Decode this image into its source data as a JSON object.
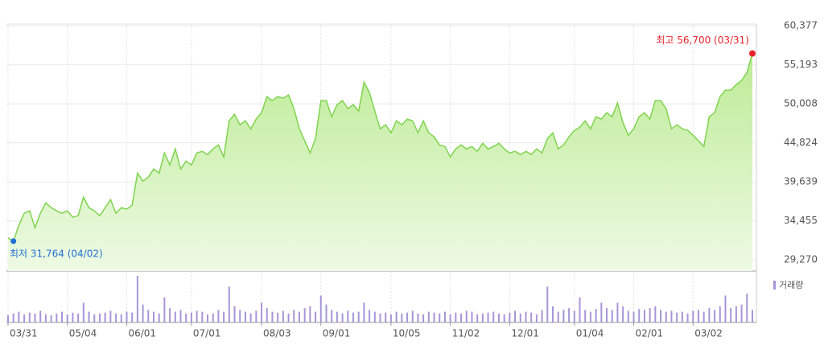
{
  "chart_data": [
    {
      "type": "area",
      "color": "#7fd44f",
      "categories": [
        "03/31",
        null,
        null,
        null,
        null,
        null,
        null,
        null,
        null,
        null,
        null,
        "05/04",
        null,
        null,
        null,
        null,
        null,
        null,
        null,
        null,
        null,
        null,
        "06/01",
        null,
        null,
        null,
        null,
        null,
        null,
        null,
        null,
        null,
        null,
        null,
        "07/01",
        null,
        null,
        null,
        null,
        null,
        null,
        null,
        null,
        null,
        null,
        null,
        null,
        "08/03",
        null,
        null,
        null,
        null,
        null,
        null,
        null,
        null,
        null,
        null,
        "09/01",
        null,
        null,
        null,
        null,
        null,
        null,
        null,
        null,
        null,
        null,
        null,
        null,
        "10/05",
        null,
        null,
        null,
        null,
        null,
        null,
        null,
        null,
        null,
        null,
        "11/02",
        null,
        null,
        null,
        null,
        null,
        null,
        null,
        null,
        null,
        null,
        "12/01",
        null,
        null,
        null,
        null,
        null,
        null,
        null,
        null,
        null,
        null,
        null,
        "01/04",
        null,
        null,
        null,
        null,
        null,
        null,
        null,
        null,
        null,
        null,
        "02/01",
        null,
        null,
        null,
        null,
        null,
        null,
        null,
        null,
        null,
        null,
        "03/02",
        null,
        null,
        null,
        null,
        null,
        null,
        null,
        null,
        null,
        null,
        null
      ],
      "values": [
        32200,
        31764,
        33866,
        35469,
        35790,
        33545,
        35469,
        36859,
        36218,
        35790,
        35469,
        35790,
        34935,
        35149,
        37607,
        36218,
        35790,
        35149,
        36218,
        37287,
        35469,
        36218,
        36004,
        36538,
        40814,
        39745,
        40280,
        41349,
        40814,
        43487,
        41883,
        44021,
        41349,
        42418,
        41883,
        43487,
        43701,
        43273,
        44021,
        44556,
        42952,
        47763,
        48618,
        47228,
        47763,
        46694,
        47977,
        48832,
        50970,
        50435,
        50970,
        50756,
        51184,
        49366,
        46694,
        45090,
        43487,
        45411,
        50435,
        50435,
        48297,
        49901,
        50435,
        49366,
        49901,
        49046,
        52894,
        51504,
        49046,
        46694,
        47228,
        46159,
        47763,
        47228,
        47977,
        47763,
        46159,
        47763,
        46159,
        45625,
        44556,
        44342,
        42952,
        44021,
        44556,
        44021,
        44342,
        43701,
        44770,
        44021,
        44342,
        44770,
        44021,
        43487,
        43701,
        43273,
        43701,
        43273,
        44021,
        43487,
        45411,
        46159,
        44021,
        44556,
        45625,
        46480,
        46908,
        47763,
        46694,
        48297,
        47977,
        48832,
        48297,
        50115,
        47549,
        45839,
        46694,
        48297,
        48832,
        47977,
        50435,
        50435,
        49366,
        46694,
        47228,
        46694,
        46480,
        45839,
        45090,
        44342,
        48297,
        48832,
        50970,
        51825,
        51825,
        52573,
        53108,
        54177,
        56700
      ],
      "ylim": [
        27800,
        60600
      ],
      "yticks": [
        {
          "value": 60377,
          "label": "60,377"
        },
        {
          "value": 55193,
          "label": "55,193"
        },
        {
          "value": 50008,
          "label": "50,008"
        },
        {
          "value": 44824,
          "label": "44,824"
        },
        {
          "value": 39639,
          "label": "39,639"
        },
        {
          "value": 34455,
          "label": "34,455"
        },
        {
          "value": 29270,
          "label": "29,270"
        }
      ],
      "grid": true,
      "high_label": "최고 56,700 (03/31)",
      "high_color": "#e8232b",
      "low_label": "최저 31,764 (04/02)",
      "low_color": "#1f6fd6"
    },
    {
      "type": "bar",
      "label": "거래량",
      "color": "#a596d8",
      "values": [
        8,
        10,
        12,
        9,
        11,
        10,
        13,
        9,
        8,
        10,
        12,
        9,
        11,
        10,
        22,
        12,
        9,
        10,
        11,
        13,
        10,
        9,
        12,
        11,
        52,
        20,
        14,
        12,
        10,
        28,
        16,
        12,
        14,
        10,
        11,
        13,
        12,
        9,
        10,
        14,
        12,
        40,
        18,
        14,
        12,
        10,
        13,
        22,
        16,
        12,
        11,
        13,
        10,
        14,
        12,
        16,
        18,
        12,
        30,
        20,
        14,
        12,
        10,
        13,
        11,
        12,
        22,
        14,
        12,
        10,
        11,
        9,
        12,
        10,
        11,
        13,
        10,
        9,
        12,
        11,
        10,
        12,
        9,
        11,
        10,
        13,
        12,
        9,
        10,
        11,
        12,
        10,
        9,
        11,
        13,
        10,
        12,
        11,
        9,
        14,
        40,
        18,
        12,
        14,
        16,
        13,
        28,
        14,
        12,
        15,
        22,
        16,
        14,
        22,
        18,
        13,
        12,
        15,
        14,
        16,
        18,
        14,
        12,
        13,
        11,
        12,
        10,
        13,
        14,
        12,
        16,
        14,
        18,
        30,
        16,
        18,
        20,
        32,
        14
      ]
    }
  ]
}
